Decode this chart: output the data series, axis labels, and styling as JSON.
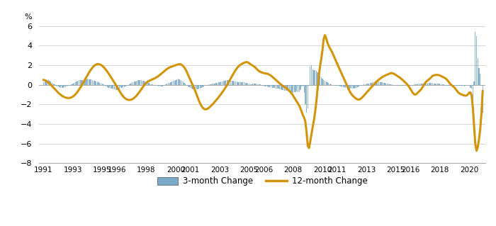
{
  "ylabel": "%",
  "ylim": [
    -8,
    6
  ],
  "yticks": [
    -8,
    -6,
    -4,
    -2,
    0,
    2,
    4,
    6
  ],
  "bar_color": "#7aaac8",
  "line_color": "#d4940a",
  "background_color": "#ffffff",
  "grid_color": "#d0d0d0",
  "legend_bar": "3-month Change",
  "legend_line": "12-month Change",
  "xtick_positions": [
    1991,
    1993,
    1995,
    1996,
    1998,
    2000,
    2001,
    2003,
    2005,
    2006,
    2008,
    2010,
    2011,
    2013,
    2015,
    2016,
    2018,
    2020
  ],
  "xlim": [
    1990.7,
    2021.1
  ]
}
